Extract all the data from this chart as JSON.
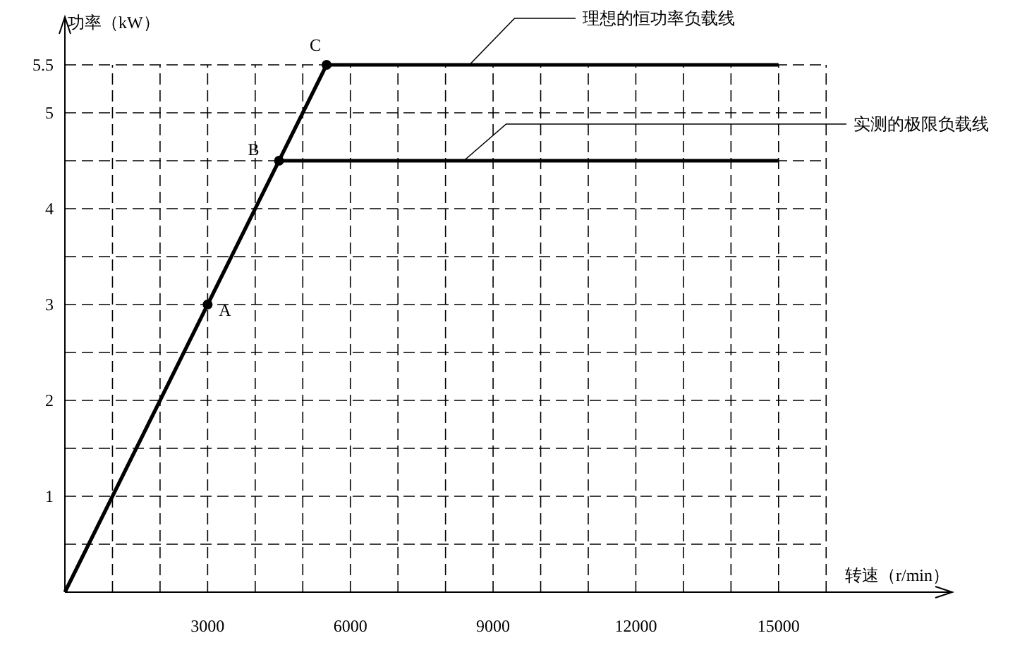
{
  "chart_data": {
    "type": "line",
    "xlabel": "转速（r/min）",
    "ylabel": "功率（kW）",
    "xlim": [
      0,
      18650
    ],
    "ylim": [
      0,
      6
    ],
    "xticks": [
      {
        "value": 1000,
        "label": null
      },
      {
        "value": 2000,
        "label": null
      },
      3000,
      {
        "value": 4000,
        "label": null
      },
      {
        "value": 5000,
        "label": null
      },
      6000,
      {
        "value": 7000,
        "label": null
      },
      {
        "value": 8000,
        "label": null
      },
      9000,
      {
        "value": 10000,
        "label": null
      },
      {
        "value": 11000,
        "label": null
      },
      12000,
      {
        "value": 13000,
        "label": null
      },
      {
        "value": 14000,
        "label": null
      },
      15000,
      {
        "value": 16000,
        "label": null
      }
    ],
    "yticks": [
      {
        "value": 0.5,
        "label": null
      },
      1,
      {
        "value": 1.5,
        "label": null
      },
      2,
      {
        "value": 2.5,
        "label": null
      },
      3,
      {
        "value": 3.5,
        "label": null
      },
      4,
      {
        "value": 4.5,
        "label": null
      },
      5,
      5.5
    ],
    "grid": true,
    "series": [
      {
        "name": "理想的恒功率负载线",
        "color": "#000000",
        "x": [
          0,
          5500,
          15000
        ],
        "values": [
          0,
          5.5,
          5.5
        ]
      },
      {
        "name": "实测的极限负载线",
        "color": "#000000",
        "x": [
          4500,
          15000
        ],
        "values": [
          4.5,
          4.5
        ]
      },
      {
        "type": "scatter",
        "marker": "circle",
        "color": "#000000",
        "x": [
          3000,
          4500,
          5500
        ],
        "values": [
          3,
          4.5,
          5.5
        ]
      }
    ],
    "annotations": [
      {
        "text": "A",
        "x": 3000,
        "y": 3
      },
      {
        "text": "B",
        "x": 4500,
        "y": 4.5
      },
      {
        "text": "C",
        "x": 5500,
        "y": 5.5
      }
    ]
  }
}
